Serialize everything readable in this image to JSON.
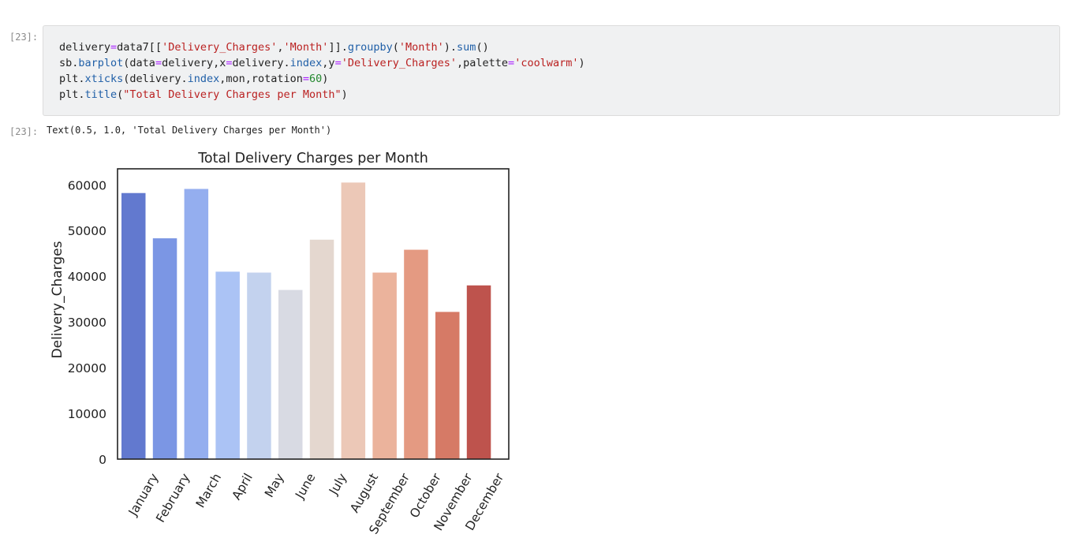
{
  "cell": {
    "input_prompt": "[23]:",
    "output_prompt": "[23]:",
    "output_text": "Text(0.5, 1.0, 'Total Delivery Charges per Month')",
    "code_lines": [
      "delivery=data7[['Delivery_Charges','Month']].groupby('Month').sum()",
      "sb.barplot(data=delivery,x=delivery.index,y='Delivery_Charges',palette='coolwarm')",
      "plt.xticks(delivery.index,mon,rotation=60)",
      "plt.title(\"Total Delivery Charges per Month\")"
    ]
  },
  "chart_data": {
    "type": "bar",
    "title": "Total Delivery Charges per Month",
    "xlabel": "",
    "ylabel": "Delivery_Charges",
    "ylim": [
      0,
      63500
    ],
    "yticks": [
      0,
      10000,
      20000,
      30000,
      40000,
      50000,
      60000
    ],
    "values": [
      58200,
      48300,
      59100,
      41000,
      40800,
      37000,
      48000,
      60500,
      40800,
      45800,
      32200,
      38000
    ],
    "xtick_labels": [
      "January",
      "February",
      "March",
      "April",
      "May",
      "June",
      "July",
      "August",
      "September",
      "October",
      "November",
      "December"
    ],
    "colors": [
      "#6279cf",
      "#7b96e4",
      "#94aeef",
      "#abc3f5",
      "#c3d2ee",
      "#d8dae3",
      "#e4d7cf",
      "#ecc8b7",
      "#ebb39c",
      "#e49a82",
      "#d67a66",
      "#be534d"
    ],
    "legend": "none",
    "grid": false
  }
}
